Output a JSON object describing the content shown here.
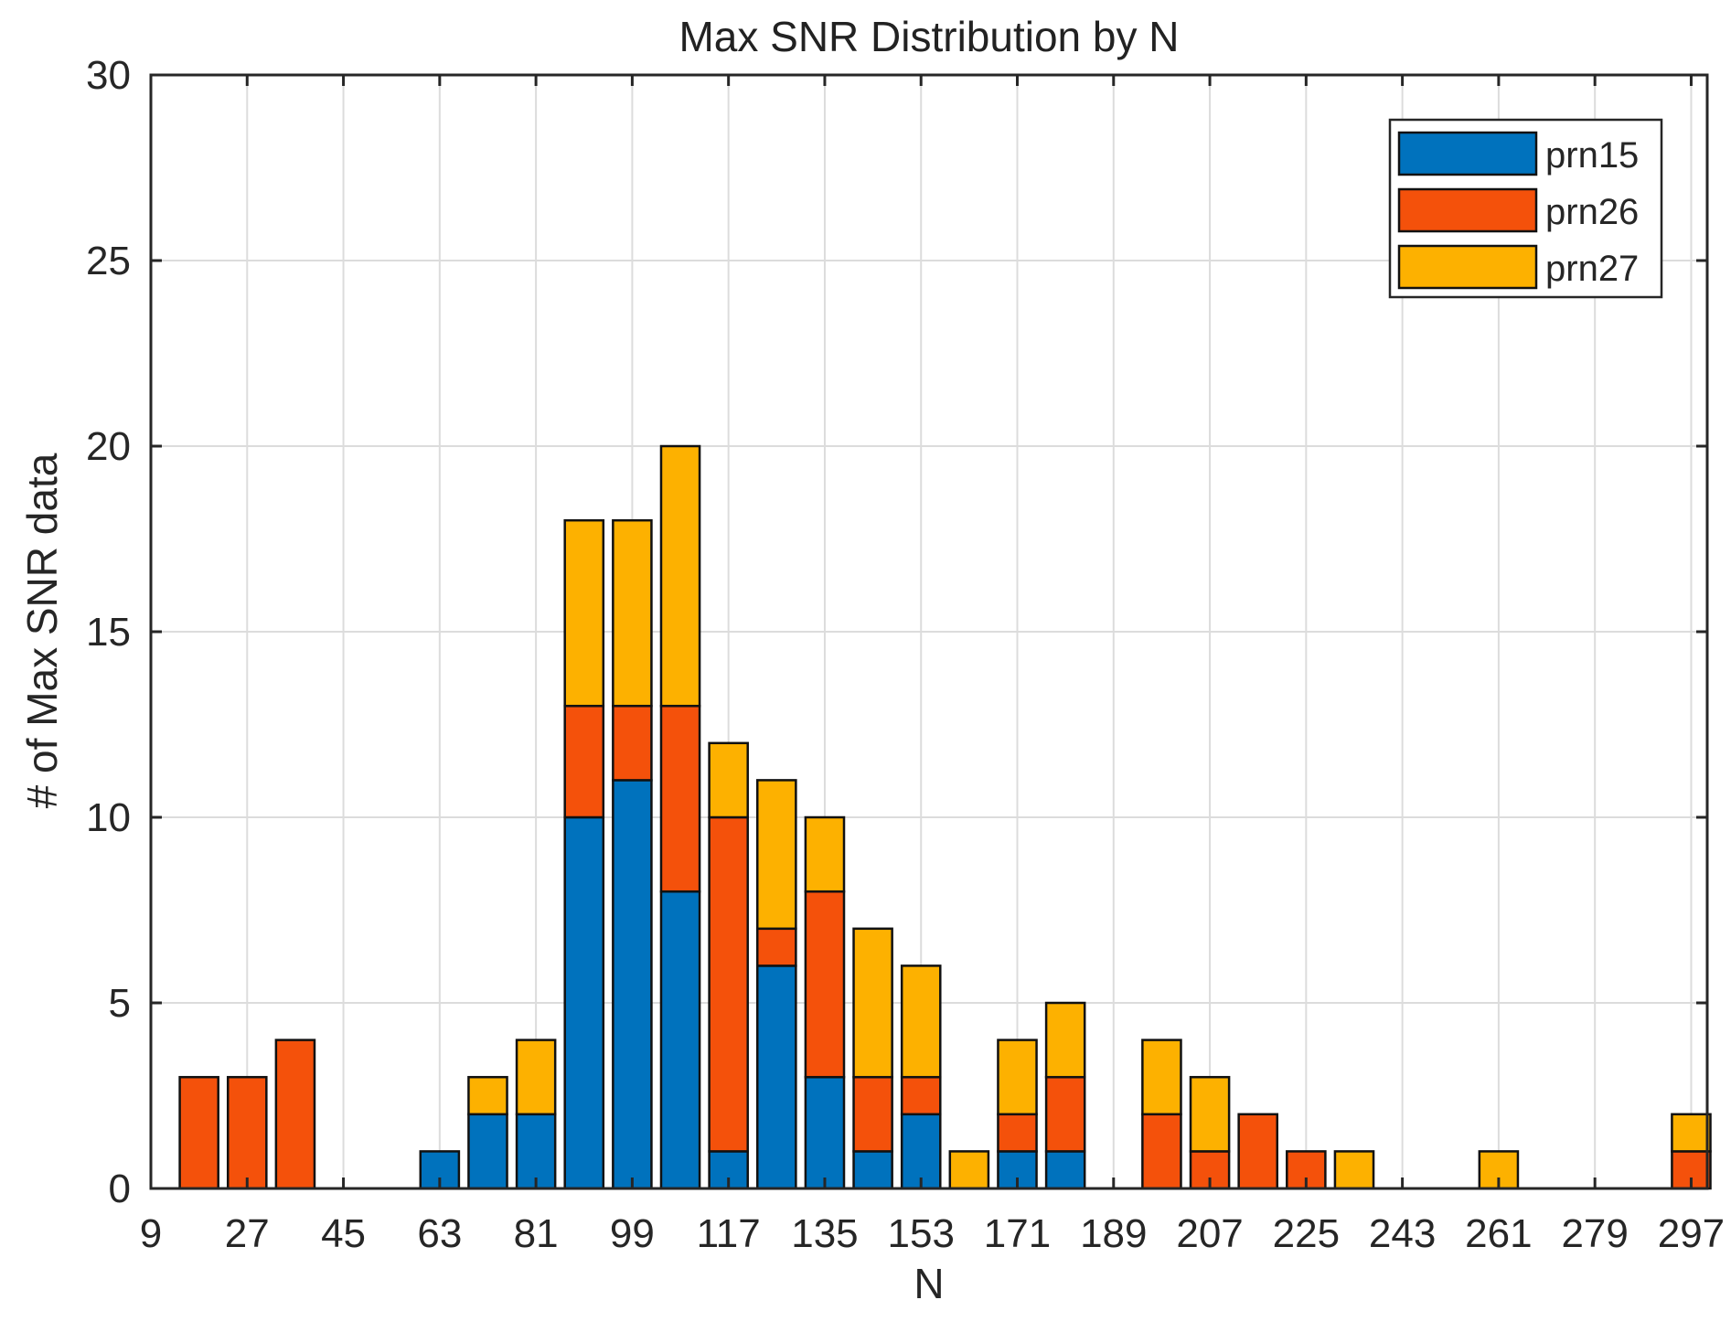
{
  "chart_data": {
    "type": "bar",
    "stacked": true,
    "title": "Max SNR Distribution by N",
    "xlabel": "N",
    "ylabel": "# of Max SNR data",
    "xlim": [
      9,
      300
    ],
    "ylim": [
      0,
      30
    ],
    "bin_width": 9,
    "xticks": [
      9,
      27,
      45,
      63,
      81,
      99,
      117,
      135,
      153,
      171,
      189,
      207,
      225,
      243,
      261,
      279,
      297
    ],
    "yticks": [
      0,
      5,
      10,
      15,
      20,
      25,
      30
    ],
    "grid": true,
    "legend_position": "top-right",
    "x": [
      18,
      27,
      36,
      63,
      72,
      81,
      90,
      99,
      108,
      117,
      126,
      135,
      144,
      153,
      162,
      171,
      180,
      198,
      207,
      216,
      225,
      234,
      261,
      297
    ],
    "series": [
      {
        "name": "prn15",
        "color": "#0072BD",
        "values": [
          0,
          0,
          0,
          1,
          2,
          2,
          10,
          11,
          8,
          1,
          6,
          3,
          1,
          2,
          0,
          1,
          1,
          0,
          0,
          0,
          0,
          0,
          0,
          0
        ]
      },
      {
        "name": "prn26",
        "color": "#F4510B",
        "values": [
          3,
          3,
          4,
          0,
          0,
          0,
          3,
          2,
          5,
          9,
          1,
          5,
          2,
          1,
          0,
          1,
          2,
          2,
          1,
          2,
          1,
          0,
          0,
          1
        ]
      },
      {
        "name": "prn27",
        "color": "#FDB100",
        "values": [
          0,
          0,
          0,
          0,
          1,
          2,
          5,
          5,
          7,
          2,
          4,
          2,
          4,
          3,
          1,
          2,
          2,
          2,
          2,
          0,
          0,
          1,
          1,
          1
        ]
      }
    ]
  }
}
